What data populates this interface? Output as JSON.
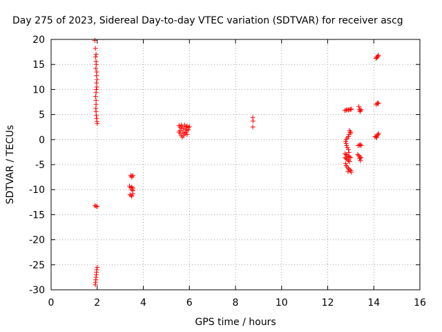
{
  "chart_data": {
    "type": "scatter",
    "title": "Day 275 of 2023, Sidereal Day-to-day VTEC variation (SDTVAR) for receiver ascg",
    "xlabel": "GPS time / hours",
    "ylabel": "SDTVAR / TECUs",
    "xlim": [
      0,
      16
    ],
    "ylim": [
      -30,
      20
    ],
    "xticks": [
      0,
      2,
      4,
      6,
      8,
      10,
      12,
      14,
      16
    ],
    "yticks": [
      20,
      15,
      10,
      5,
      0,
      -5,
      -10,
      -15,
      -20,
      -25,
      -30
    ],
    "xtick_labels": [
      "0",
      "2",
      "4",
      "6",
      "8",
      "10",
      "12",
      "14",
      "16"
    ],
    "ytick_labels": [
      "20",
      "15",
      "10",
      "5",
      "0",
      "-5",
      "-10",
      "-15",
      "-20",
      "-25",
      "-30"
    ],
    "grid": true,
    "marker": "+",
    "series": [
      {
        "name": "SDTVAR",
        "color": "#ff0000",
        "points": [
          [
            1.9,
            19.8
          ],
          [
            1.92,
            18.2
          ],
          [
            1.95,
            17.0
          ],
          [
            1.93,
            16.5
          ],
          [
            1.95,
            15.6
          ],
          [
            1.96,
            15.0
          ],
          [
            1.94,
            14.2
          ],
          [
            1.98,
            13.5
          ],
          [
            1.97,
            12.8
          ],
          [
            1.99,
            12.0
          ],
          [
            1.97,
            11.3
          ],
          [
            1.98,
            10.5
          ],
          [
            1.96,
            10.0
          ],
          [
            1.95,
            9.4
          ],
          [
            1.93,
            8.6
          ],
          [
            1.95,
            7.8
          ],
          [
            1.95,
            7.0
          ],
          [
            1.94,
            6.2
          ],
          [
            1.95,
            5.6
          ],
          [
            1.96,
            4.8
          ],
          [
            1.98,
            4.2
          ],
          [
            1.99,
            3.6
          ],
          [
            2.0,
            3.2
          ],
          [
            1.9,
            -13.2
          ],
          [
            1.95,
            -13.3
          ],
          [
            2.0,
            -13.4
          ],
          [
            2.0,
            -25.5
          ],
          [
            1.98,
            -26.0
          ],
          [
            1.97,
            -26.5
          ],
          [
            1.96,
            -27.0
          ],
          [
            1.95,
            -27.5
          ],
          [
            1.94,
            -28.0
          ],
          [
            1.93,
            -28.5
          ],
          [
            1.92,
            -29.0
          ],
          [
            3.45,
            -7.2
          ],
          [
            3.5,
            -7.3
          ],
          [
            3.55,
            -7.2
          ],
          [
            3.5,
            -7.5
          ],
          [
            3.4,
            -9.3
          ],
          [
            3.45,
            -9.6
          ],
          [
            3.5,
            -9.5
          ],
          [
            3.55,
            -9.7
          ],
          [
            3.5,
            -10.0
          ],
          [
            3.55,
            -10.2
          ],
          [
            3.42,
            -11.0
          ],
          [
            3.48,
            -11.2
          ],
          [
            3.55,
            -10.8
          ],
          [
            3.5,
            -11.3
          ],
          [
            5.55,
            2.8
          ],
          [
            5.6,
            2.5
          ],
          [
            5.65,
            2.2
          ],
          [
            5.6,
            1.8
          ],
          [
            5.55,
            1.5
          ],
          [
            5.6,
            1.2
          ],
          [
            5.65,
            0.8
          ],
          [
            5.7,
            0.5
          ],
          [
            5.75,
            0.8
          ],
          [
            5.72,
            1.5
          ],
          [
            5.8,
            2.9
          ],
          [
            5.85,
            2.5
          ],
          [
            5.9,
            2.7
          ],
          [
            5.95,
            2.4
          ],
          [
            6.0,
            2.6
          ],
          [
            5.85,
            2.0
          ],
          [
            5.9,
            1.8
          ],
          [
            5.95,
            2.0
          ],
          [
            5.8,
            1.2
          ],
          [
            5.75,
            2.2
          ],
          [
            5.7,
            2.6
          ],
          [
            5.65,
            2.9
          ],
          [
            5.85,
            1.4
          ],
          [
            5.9,
            1.0
          ],
          [
            8.75,
            4.4
          ],
          [
            8.76,
            3.7
          ],
          [
            8.75,
            2.5
          ],
          [
            12.75,
            5.8
          ],
          [
            12.8,
            5.9
          ],
          [
            12.85,
            6.0
          ],
          [
            12.9,
            5.9
          ],
          [
            12.95,
            6.0
          ],
          [
            13.0,
            6.0
          ],
          [
            13.02,
            6.1
          ],
          [
            12.95,
            1.8
          ],
          [
            12.98,
            1.5
          ],
          [
            13.0,
            1.3
          ],
          [
            12.92,
            1.0
          ],
          [
            12.9,
            0.6
          ],
          [
            12.85,
            0.3
          ],
          [
            12.8,
            0.0
          ],
          [
            12.78,
            -0.4
          ],
          [
            12.8,
            -0.8
          ],
          [
            12.82,
            -1.2
          ],
          [
            12.85,
            -1.6
          ],
          [
            12.9,
            -2.0
          ],
          [
            12.75,
            -2.8
          ],
          [
            12.8,
            -3.0
          ],
          [
            12.85,
            -3.2
          ],
          [
            12.9,
            -3.4
          ],
          [
            12.95,
            -3.5
          ],
          [
            13.0,
            -3.6
          ],
          [
            12.75,
            -3.6
          ],
          [
            12.8,
            -3.8
          ],
          [
            12.85,
            -4.0
          ],
          [
            12.9,
            -4.2
          ],
          [
            12.95,
            -4.4
          ],
          [
            12.78,
            -4.8
          ],
          [
            12.8,
            -5.2
          ],
          [
            12.85,
            -5.5
          ],
          [
            12.9,
            -5.8
          ],
          [
            12.95,
            -6.0
          ],
          [
            13.0,
            -6.2
          ],
          [
            13.02,
            -6.5
          ],
          [
            12.88,
            -6.4
          ],
          [
            12.92,
            -2.6
          ],
          [
            13.35,
            6.6
          ],
          [
            13.38,
            6.0
          ],
          [
            13.42,
            5.8
          ],
          [
            13.45,
            6.0
          ],
          [
            13.4,
            5.6
          ],
          [
            13.32,
            -1.2
          ],
          [
            13.38,
            -1.1
          ],
          [
            13.42,
            -1.0
          ],
          [
            13.45,
            -1.2
          ],
          [
            13.3,
            -3.0
          ],
          [
            13.35,
            -3.2
          ],
          [
            13.4,
            -3.5
          ],
          [
            13.45,
            -3.6
          ],
          [
            13.42,
            -4.2
          ],
          [
            13.38,
            -3.8
          ],
          [
            14.1,
            16.2
          ],
          [
            14.12,
            16.4
          ],
          [
            14.15,
            16.5
          ],
          [
            14.18,
            16.7
          ],
          [
            14.2,
            16.8
          ],
          [
            14.1,
            7.0
          ],
          [
            14.15,
            7.2
          ],
          [
            14.18,
            7.3
          ],
          [
            14.2,
            7.2
          ],
          [
            14.05,
            0.6
          ],
          [
            14.1,
            0.5
          ],
          [
            14.15,
            0.8
          ],
          [
            14.18,
            1.0
          ],
          [
            14.2,
            1.2
          ],
          [
            14.12,
            0.4
          ]
        ]
      }
    ]
  }
}
